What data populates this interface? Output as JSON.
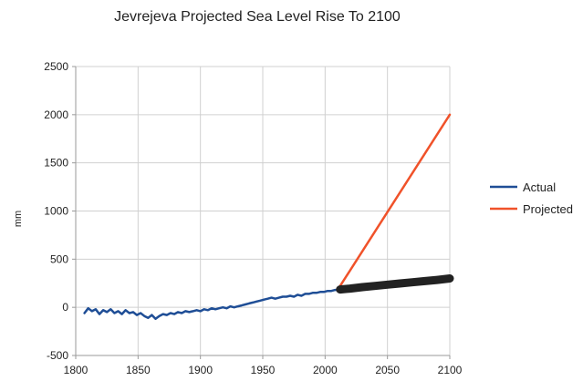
{
  "chart_data": {
    "type": "line",
    "title": "Jevrejeva Projected Sea Level Rise To 2100",
    "xlabel": "",
    "ylabel": "mm",
    "xlim": [
      1800,
      2100
    ],
    "ylim": [
      -500,
      2500
    ],
    "xticks": [
      1800,
      1850,
      1900,
      1950,
      2000,
      2050,
      2100
    ],
    "yticks": [
      -500,
      0,
      500,
      1000,
      1500,
      2000,
      2500
    ],
    "grid": true,
    "legend_position": "right",
    "series": [
      {
        "name": "Actual",
        "color": "#1f4e96",
        "x": [
          1807,
          1810,
          1813,
          1816,
          1819,
          1822,
          1825,
          1828,
          1831,
          1834,
          1837,
          1840,
          1843,
          1846,
          1849,
          1852,
          1855,
          1858,
          1861,
          1864,
          1867,
          1870,
          1873,
          1876,
          1879,
          1882,
          1885,
          1888,
          1891,
          1894,
          1897,
          1900,
          1903,
          1906,
          1909,
          1912,
          1915,
          1918,
          1921,
          1924,
          1927,
          1930,
          1933,
          1936,
          1939,
          1942,
          1945,
          1948,
          1951,
          1954,
          1957,
          1960,
          1963,
          1966,
          1969,
          1972,
          1975,
          1978,
          1981,
          1984,
          1987,
          1990,
          1993,
          1996,
          1999,
          2002,
          2005,
          2008,
          2010
        ],
        "y": [
          -60,
          -10,
          -40,
          -20,
          -70,
          -30,
          -50,
          -20,
          -60,
          -40,
          -70,
          -30,
          -60,
          -50,
          -80,
          -60,
          -90,
          -110,
          -80,
          -120,
          -90,
          -70,
          -80,
          -60,
          -70,
          -50,
          -60,
          -40,
          -50,
          -40,
          -30,
          -40,
          -20,
          -30,
          -10,
          -20,
          -10,
          0,
          -10,
          10,
          0,
          10,
          20,
          30,
          40,
          50,
          60,
          70,
          80,
          90,
          100,
          90,
          100,
          110,
          110,
          120,
          110,
          130,
          120,
          140,
          140,
          150,
          150,
          160,
          160,
          170,
          170,
          180,
          180
        ]
      },
      {
        "name": "Projected",
        "color": "#f0522a",
        "x": [
          2010,
          2100
        ],
        "y": [
          180,
          2000
        ]
      },
      {
        "name": "",
        "color": "#222222",
        "x": [
          2012,
          2020,
          2030,
          2040,
          2050,
          2060,
          2070,
          2080,
          2090,
          2100
        ],
        "y": [
          185,
          195,
          210,
          222,
          235,
          248,
          260,
          272,
          285,
          300
        ]
      }
    ]
  }
}
